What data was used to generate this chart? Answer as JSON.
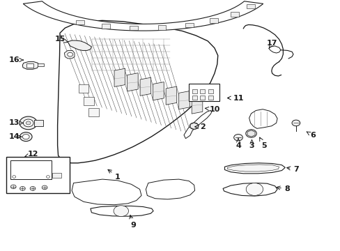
{
  "bg_color": "#ffffff",
  "line_color": "#1a1a1a",
  "fig_width": 4.89,
  "fig_height": 3.6,
  "dpi": 100,
  "label_fs": 8,
  "labels": {
    "1": [
      0.345,
      0.295,
      0.31,
      0.33
    ],
    "2": [
      0.595,
      0.495,
      0.57,
      0.495
    ],
    "3": [
      0.74,
      0.42,
      0.74,
      0.445
    ],
    "4": [
      0.7,
      0.42,
      0.7,
      0.45
    ],
    "5": [
      0.775,
      0.42,
      0.762,
      0.455
    ],
    "6": [
      0.92,
      0.46,
      0.895,
      0.48
    ],
    "7": [
      0.87,
      0.325,
      0.835,
      0.333
    ],
    "8": [
      0.845,
      0.245,
      0.805,
      0.255
    ],
    "9": [
      0.39,
      0.1,
      0.38,
      0.152
    ],
    "10": [
      0.63,
      0.565,
      0.595,
      0.57
    ],
    "11": [
      0.7,
      0.61,
      0.66,
      0.61
    ],
    "12": [
      0.095,
      0.385,
      0.07,
      0.375
    ],
    "13": [
      0.04,
      0.51,
      0.068,
      0.51
    ],
    "14": [
      0.04,
      0.455,
      0.063,
      0.455
    ],
    "15": [
      0.175,
      0.845,
      0.2,
      0.832
    ],
    "16": [
      0.04,
      0.762,
      0.068,
      0.762
    ],
    "17": [
      0.8,
      0.83,
      0.79,
      0.808
    ]
  }
}
